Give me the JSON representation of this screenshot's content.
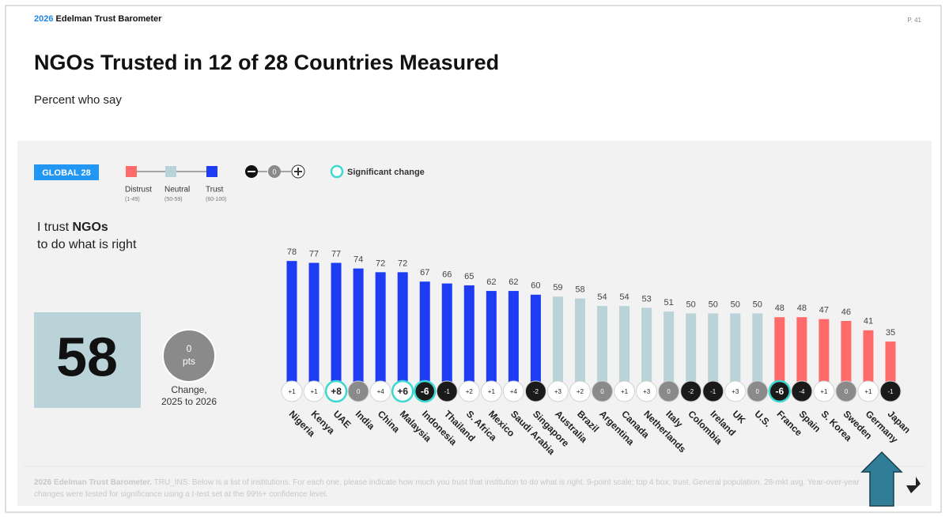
{
  "header": {
    "year": "2026",
    "name": "Edelman Trust Barometer",
    "page": "P. 41"
  },
  "chart_data": {
    "type": "bar",
    "title": "NGOs Trusted in 12 of 28 Countries Measured",
    "subtitle": "Percent who say",
    "global": {
      "label": "GLOBAL 28",
      "value": 58,
      "change": 0,
      "change_unit": "pts",
      "change_caption": [
        "Change,",
        "2025 to 2026"
      ]
    },
    "question": {
      "prefix": "I trust",
      "subject": "NGOs",
      "suffix": "to do what is right"
    },
    "legend": [
      {
        "label": "Distrust",
        "range": "(1-49)",
        "color": "#ff6b6b",
        "min": 1,
        "max": 49
      },
      {
        "label": "Neutral",
        "range": "(50-59)",
        "color": "#b9d3d9",
        "min": 50,
        "max": 59
      },
      {
        "label": "Trust",
        "range": "(60-100)",
        "color": "#1f3cf5",
        "min": 60,
        "max": 100
      }
    ],
    "change_legend": {
      "zero": "0",
      "significant": "Significant change",
      "significant_color": "#3fd8d0"
    },
    "categories": [
      "Nigeria",
      "Kenya",
      "UAE",
      "India",
      "China",
      "Malaysia",
      "Indonesia",
      "Thailand",
      "S. Africa",
      "Mexico",
      "Saudi Arabia",
      "Singapore",
      "Australia",
      "Brazil",
      "Argentina",
      "Canada",
      "Netherlands",
      "Italy",
      "Colombia",
      "Ireland",
      "UK",
      "U.S.",
      "France",
      "Spain",
      "S. Korea",
      "Sweden",
      "Germany",
      "Japan"
    ],
    "values": [
      78,
      77,
      77,
      74,
      72,
      72,
      67,
      66,
      65,
      62,
      62,
      60,
      59,
      58,
      54,
      54,
      53,
      51,
      50,
      50,
      50,
      50,
      48,
      48,
      47,
      46,
      41,
      35
    ],
    "changes": {
      "values": [
        1,
        1,
        8,
        0,
        4,
        6,
        -6,
        -1,
        2,
        1,
        4,
        -2,
        3,
        2,
        0,
        1,
        3,
        0,
        -2,
        -1,
        3,
        0,
        -6,
        -4,
        1,
        0,
        1,
        -1
      ],
      "value_labels": [
        "+1",
        "+1",
        "+8",
        "0",
        "+4",
        "+6",
        "-6",
        "-1",
        "+2",
        "+1",
        "+4",
        "-2",
        "+3",
        "+2",
        "0",
        "+1",
        "+3",
        "0",
        "-2",
        "-1",
        "+3",
        "0",
        "-6",
        "-4",
        "+1",
        "0",
        "+1",
        "-1"
      ],
      "significant": [
        false,
        false,
        true,
        false,
        false,
        true,
        true,
        false,
        false,
        false,
        false,
        false,
        false,
        false,
        false,
        false,
        false,
        false,
        false,
        false,
        false,
        false,
        true,
        false,
        false,
        false,
        false,
        false
      ]
    }
  },
  "footnote": {
    "source": "2026 Edelman Trust Barometer.",
    "text": "TRU_INS. Below is a list of institutions. For each one, please indicate how much you trust that institution to do what is right. 9-point scale; top 4 box, trust. General population, 28-mkt avg. Year-over-year changes were tested for significance using a t-test set at the 99%+ confidence level."
  }
}
